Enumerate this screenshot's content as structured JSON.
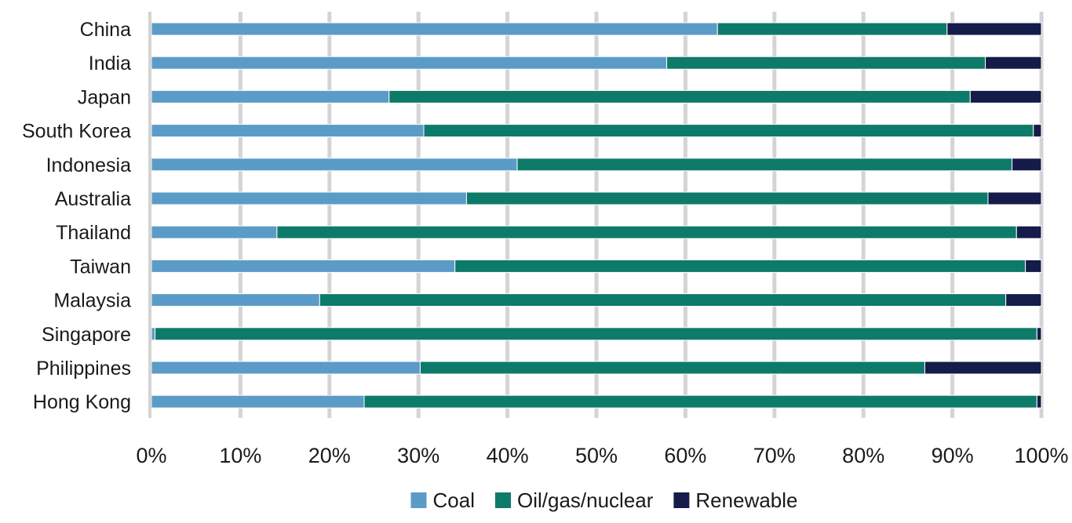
{
  "chart_data": {
    "type": "bar",
    "orientation": "horizontal",
    "stacked": "percent",
    "title": "",
    "xlabel": "",
    "ylabel": "",
    "xlim": [
      0,
      100
    ],
    "x_ticks": [
      "0%",
      "10%",
      "20%",
      "30%",
      "40%",
      "50%",
      "60%",
      "70%",
      "80%",
      "90%",
      "100%"
    ],
    "grid": "vertical",
    "legend_position": "bottom",
    "categories": [
      "China",
      "India",
      "Japan",
      "South Korea",
      "Indonesia",
      "Australia",
      "Thailand",
      "Taiwan",
      "Malaysia",
      "Singapore",
      "Philippines",
      "Hong Kong"
    ],
    "series": [
      {
        "name": "Coal",
        "color": "#5b9bc8",
        "values": [
          63.6,
          57.9,
          26.7,
          30.6,
          41.1,
          35.4,
          14.1,
          34.1,
          18.9,
          0.4,
          30.2,
          23.9
        ]
      },
      {
        "name": "Oil/gas/nuclear",
        "color": "#0e7a69",
        "values": [
          25.8,
          35.8,
          65.3,
          68.5,
          55.6,
          58.6,
          83.1,
          64.1,
          77.1,
          99.1,
          56.7,
          75.6
        ]
      },
      {
        "name": "Renewable",
        "color": "#151c4a",
        "values": [
          10.6,
          6.3,
          8.0,
          0.9,
          3.3,
          6.0,
          2.8,
          1.8,
          4.0,
          0.5,
          13.1,
          0.5
        ]
      }
    ]
  }
}
